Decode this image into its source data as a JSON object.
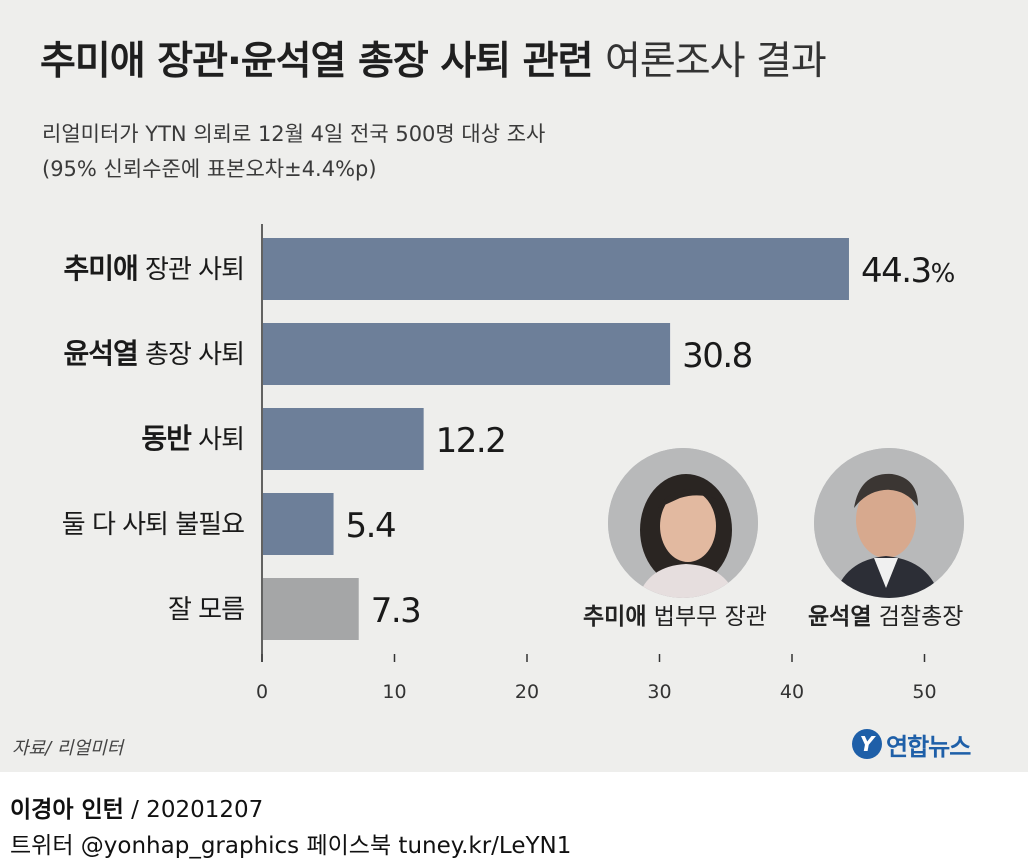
{
  "header": {
    "title_bold": "추미애 장관·윤석열 총장 사퇴 관련",
    "title_light": "여론조사 결과",
    "subtitle_line1": "리얼미터가 YTN 의뢰로 12월 4일 전국 500명 대상 조사",
    "subtitle_line2": "(95% 신뢰수준에 표본오차±4.4%p)"
  },
  "chart_data": {
    "type": "bar",
    "orientation": "horizontal",
    "categories": [
      {
        "bold": "추미애",
        "rest": " 장관 사퇴"
      },
      {
        "bold": "윤석열",
        "rest": " 총장 사퇴"
      },
      {
        "bold": "동반",
        "rest": " 사퇴"
      },
      {
        "bold": "",
        "rest": "둘 다 사퇴 불필요"
      },
      {
        "bold": "",
        "rest": "잘 모름"
      }
    ],
    "values": [
      44.3,
      30.8,
      12.2,
      5.4,
      7.3
    ],
    "value_labels": [
      "44.3",
      "30.8",
      "12.2",
      "5.4",
      "7.3"
    ],
    "first_value_unit": "%",
    "bar_colors": [
      "#6d7f99",
      "#6d7f99",
      "#6d7f99",
      "#6d7f99",
      "#a5a6a7"
    ],
    "xlim": [
      0,
      50
    ],
    "xticks": [
      0,
      10,
      20,
      30,
      40,
      50
    ],
    "grid": false
  },
  "people": [
    {
      "name": "추미애",
      "role": " 법부무 장관",
      "icon": "portrait-choo-photo"
    },
    {
      "name": "윤석열",
      "role": " 검찰총장",
      "icon": "portrait-yoon-photo"
    }
  ],
  "source": "자료/ 리얼미터",
  "logo": {
    "mark": "Y",
    "text": "연합뉴스",
    "color": "#1e5fa8"
  },
  "footer": {
    "author": "이경아 인턴",
    "date": " / 20201207",
    "social": "트위터 @yonhap_graphics  페이스북 tuney.kr/LeYN1"
  }
}
